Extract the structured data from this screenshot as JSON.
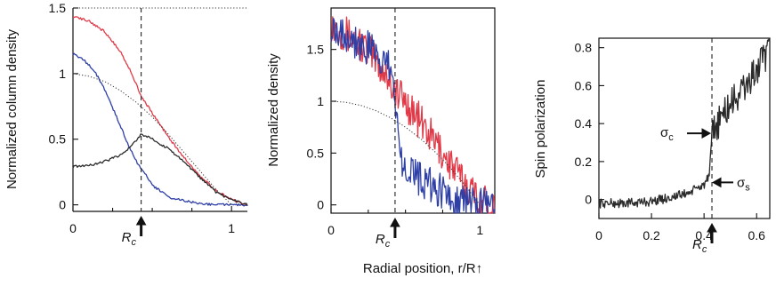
{
  "colors": {
    "red": "#e03a48",
    "blue": "#2e3fa6",
    "black": "#2a2a2a",
    "gray": "#444444"
  },
  "xlabel": "Radial position, r/R↑",
  "chart_data": [
    {
      "type": "line",
      "ylabel": "Normalized column density",
      "xlim": [
        0,
        1.1
      ],
      "ylim": [
        -0.05,
        1.5
      ],
      "xticks": [
        0,
        1
      ],
      "xticklabels": [
        "0",
        "1"
      ],
      "yticks": [
        0,
        0.5,
        1,
        1.5
      ],
      "yticklabels": [
        "0",
        "0.5",
        "1",
        "1.5"
      ],
      "marker": {
        "x": 0.43,
        "label": "R",
        "sub": "c"
      },
      "series": [
        {
          "color": "red",
          "style": "solid",
          "x": [
            0,
            0.1,
            0.2,
            0.3,
            0.35,
            0.4,
            0.43,
            0.5,
            0.6,
            0.7,
            0.8,
            0.9,
            1.0,
            1.05,
            1.1
          ],
          "values": [
            1.44,
            1.4,
            1.32,
            1.17,
            1.05,
            0.92,
            0.83,
            0.7,
            0.52,
            0.36,
            0.22,
            0.11,
            0.04,
            0.02,
            0.0
          ]
        },
        {
          "color": "blue",
          "style": "solid",
          "x": [
            0,
            0.05,
            0.1,
            0.15,
            0.2,
            0.25,
            0.3,
            0.35,
            0.4,
            0.43,
            0.5,
            0.6,
            0.7,
            0.8,
            0.9,
            1.0,
            1.1
          ],
          "values": [
            1.15,
            1.12,
            1.07,
            0.99,
            0.88,
            0.74,
            0.6,
            0.45,
            0.33,
            0.28,
            0.15,
            0.06,
            0.03,
            0.01,
            0.0,
            0.0,
            0.0
          ]
        },
        {
          "color": "black",
          "style": "solid",
          "x": [
            0,
            0.1,
            0.2,
            0.3,
            0.35,
            0.4,
            0.43,
            0.5,
            0.6,
            0.7,
            0.8,
            0.9,
            1.0,
            1.1
          ],
          "values": [
            0.29,
            0.3,
            0.33,
            0.38,
            0.43,
            0.49,
            0.54,
            0.5,
            0.43,
            0.33,
            0.21,
            0.1,
            0.04,
            0.0
          ]
        },
        {
          "color": "gray",
          "style": "dotted",
          "x": [
            0,
            0.1,
            0.2,
            0.3,
            0.4,
            0.5,
            0.6,
            0.7,
            0.8,
            0.9,
            1.0
          ],
          "values": [
            1.0,
            0.98,
            0.94,
            0.87,
            0.78,
            0.67,
            0.54,
            0.4,
            0.26,
            0.12,
            0.0
          ]
        }
      ]
    },
    {
      "type": "line",
      "ylabel": "Normalized density",
      "xlim": [
        0,
        1.1
      ],
      "ylim": [
        -0.08,
        1.9
      ],
      "xticks": [
        0,
        1
      ],
      "xticklabels": [
        "0",
        "1"
      ],
      "yticks": [
        0,
        0.5,
        1,
        1.5
      ],
      "yticklabels": [
        "0",
        "0.5",
        "1",
        "1.5"
      ],
      "marker": {
        "x": 0.43,
        "label": "R",
        "sub": "c"
      },
      "series": [
        {
          "color": "red",
          "style": "noisy",
          "x": [
            0,
            0.1,
            0.2,
            0.3,
            0.4,
            0.43,
            0.5,
            0.6,
            0.7,
            0.8,
            0.9,
            1.0,
            1.1
          ],
          "values": [
            1.75,
            1.65,
            1.55,
            1.4,
            1.2,
            1.1,
            1.0,
            0.8,
            0.6,
            0.4,
            0.2,
            0.05,
            0.0
          ]
        },
        {
          "color": "blue",
          "style": "noisy",
          "x": [
            0,
            0.1,
            0.2,
            0.3,
            0.4,
            0.43,
            0.46,
            0.5,
            0.6,
            0.7,
            0.8,
            0.9,
            1.0,
            1.1
          ],
          "values": [
            1.75,
            1.65,
            1.55,
            1.45,
            1.3,
            1.1,
            0.5,
            0.4,
            0.25,
            0.15,
            0.08,
            0.03,
            0.0,
            0.0
          ]
        },
        {
          "color": "gray",
          "style": "dotted",
          "x": [
            0,
            0.1,
            0.2,
            0.3,
            0.4,
            0.5,
            0.6,
            0.7,
            0.8,
            0.9,
            1.0
          ],
          "values": [
            1.0,
            0.99,
            0.96,
            0.91,
            0.84,
            0.75,
            0.64,
            0.51,
            0.36,
            0.19,
            0.0
          ]
        }
      ]
    },
    {
      "type": "line",
      "ylabel": "Spin polarization",
      "xlim": [
        0,
        0.65
      ],
      "ylim": [
        -0.1,
        0.85
      ],
      "xticks": [
        0,
        0.2,
        0.4,
        0.6
      ],
      "xticklabels": [
        "0",
        "0.2",
        "0.4",
        "0.6"
      ],
      "yticks": [
        0,
        0.2,
        0.4,
        0.6,
        0.8
      ],
      "yticklabels": [
        "0",
        "0.2",
        "0.4",
        "0.6",
        "0.8"
      ],
      "marker": {
        "x": 0.43,
        "label": "R",
        "sub": "c"
      },
      "annotations": [
        {
          "label": "σ",
          "sub": "c",
          "x": 0.43,
          "y": 0.33
        },
        {
          "label": "σ",
          "sub": "s",
          "x": 0.43,
          "y": 0.09
        }
      ],
      "series": [
        {
          "color": "black",
          "style": "noisy",
          "x": [
            0,
            0.1,
            0.2,
            0.3,
            0.35,
            0.4,
            0.42,
            0.43,
            0.45,
            0.5,
            0.55,
            0.6,
            0.65
          ],
          "values": [
            -0.02,
            -0.02,
            -0.01,
            0.02,
            0.04,
            0.08,
            0.12,
            0.33,
            0.4,
            0.5,
            0.58,
            0.68,
            0.78
          ]
        }
      ]
    }
  ]
}
